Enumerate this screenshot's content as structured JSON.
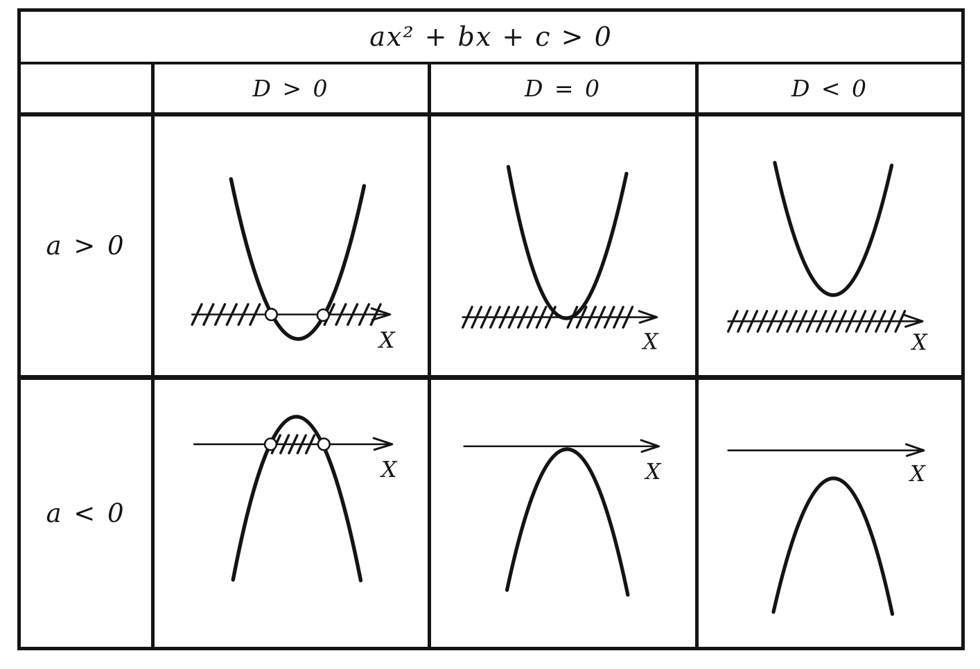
{
  "title": "ax² + bx + c > 0",
  "columns": [
    {
      "label": "D > 0"
    },
    {
      "label": "D = 0"
    },
    {
      "label": "D < 0"
    }
  ],
  "rows": [
    {
      "label": "a > 0"
    },
    {
      "label": "a < 0"
    }
  ],
  "axis_label": "X",
  "ink_color": "#141414",
  "paper_color": "#ffffff",
  "cells": [
    {
      "row_label": "a > 0",
      "col_label": "D > 0",
      "parabola": "opens-up",
      "roots": "two",
      "root_markers": "open-circles",
      "solution_hatch": "outside-roots",
      "description": "Upward parabola crossing x-axis at two open-circle roots; axis hatched left of smaller root and right of larger root"
    },
    {
      "row_label": "a > 0",
      "col_label": "D = 0",
      "parabola": "opens-up",
      "roots": "one",
      "root_markers": "none",
      "solution_hatch": "full-axis-except-tangent-point",
      "description": "Upward parabola tangent to x-axis at vertex; entire axis hatched except the tangency point"
    },
    {
      "row_label": "a > 0",
      "col_label": "D < 0",
      "parabola": "opens-up",
      "roots": "none",
      "root_markers": "none",
      "solution_hatch": "full-axis",
      "description": "Upward parabola entirely above x-axis; entire axis hatched"
    },
    {
      "row_label": "a < 0",
      "col_label": "D > 0",
      "parabola": "opens-down",
      "roots": "two",
      "root_markers": "open-circles",
      "solution_hatch": "between-roots",
      "description": "Downward parabola crossing x-axis at two open-circle roots; axis hatched between the roots"
    },
    {
      "row_label": "a < 0",
      "col_label": "D = 0",
      "parabola": "opens-down",
      "roots": "one",
      "root_markers": "none",
      "solution_hatch": "none",
      "description": "Downward parabola tangent to x-axis at vertex; no hatching (no solutions)"
    },
    {
      "row_label": "a < 0",
      "col_label": "D < 0",
      "parabola": "opens-down",
      "roots": "none",
      "root_markers": "none",
      "solution_hatch": "none",
      "description": "Downward parabola entirely below x-axis; no hatching (no solutions)"
    }
  ]
}
